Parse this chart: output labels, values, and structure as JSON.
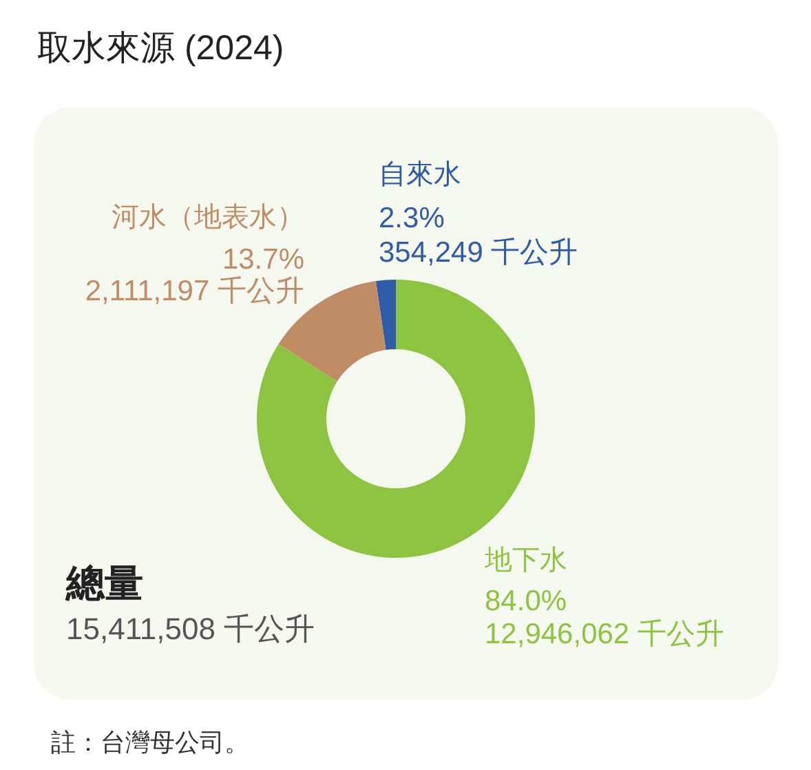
{
  "chart_data": {
    "type": "donut",
    "title": "取水來源 (2024)",
    "categories": [
      "自來水",
      "河水（地表水）",
      "地下水"
    ],
    "values": [
      354249,
      2111197,
      12946062
    ],
    "colors": [
      "#2e5ca8",
      "#c08c64",
      "#8dc43f"
    ],
    "value_labels": [
      "2.3%\n354,249 千公升",
      "13.7%\n2,111,197 千公升",
      "84.0%\n12,946,062 千公升"
    ],
    "annotations": [
      "總量",
      "15,411,508 千公升",
      "註：台灣母公司。"
    ]
  }
}
